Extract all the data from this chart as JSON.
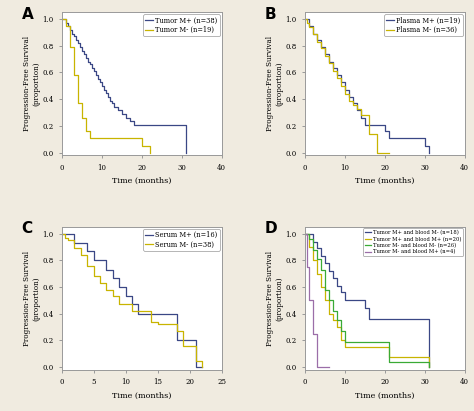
{
  "panel_A": {
    "label": "A",
    "xlabel": "Time (months)",
    "ylabel": "Progression-Free Survival\n(proportion)",
    "xlim": [
      0,
      40
    ],
    "ylim": [
      -0.02,
      1.05
    ],
    "xticks": [
      0,
      10,
      20,
      30,
      40
    ],
    "yticks": [
      0.0,
      0.2,
      0.4,
      0.6,
      0.8,
      1.0
    ],
    "series": [
      {
        "label": "Tumor M+ (n=38)",
        "color": "#3a4785",
        "x": [
          0,
          0.5,
          1,
          1.5,
          2,
          2.5,
          3,
          3.5,
          4,
          4.5,
          5,
          5.5,
          6,
          6.5,
          7,
          7.5,
          8,
          8.5,
          9,
          9.5,
          10,
          10.5,
          11,
          11.5,
          12,
          12.5,
          13,
          14,
          15,
          16,
          17,
          18,
          19,
          20,
          20.5,
          21,
          22,
          23,
          24,
          25,
          26,
          27,
          28,
          29,
          30,
          31
        ],
        "y": [
          1.0,
          1.0,
          0.97,
          0.95,
          0.92,
          0.89,
          0.87,
          0.84,
          0.82,
          0.79,
          0.76,
          0.74,
          0.71,
          0.68,
          0.66,
          0.63,
          0.61,
          0.58,
          0.55,
          0.53,
          0.5,
          0.47,
          0.45,
          0.42,
          0.39,
          0.37,
          0.34,
          0.32,
          0.29,
          0.26,
          0.24,
          0.21,
          0.21,
          0.21,
          0.21,
          0.21,
          0.21,
          0.21,
          0.21,
          0.21,
          0.21,
          0.21,
          0.21,
          0.21,
          0.21,
          0.0
        ]
      },
      {
        "label": "Tumor M- (n=19)",
        "color": "#c8b400",
        "x": [
          0,
          1,
          2,
          3,
          4,
          5,
          6,
          7,
          8,
          9,
          10,
          11,
          12,
          13,
          14,
          15,
          16,
          17,
          18,
          19,
          20,
          21,
          22
        ],
        "y": [
          1.0,
          0.95,
          0.79,
          0.58,
          0.37,
          0.26,
          0.16,
          0.11,
          0.11,
          0.11,
          0.11,
          0.11,
          0.11,
          0.11,
          0.11,
          0.11,
          0.11,
          0.11,
          0.11,
          0.11,
          0.05,
          0.05,
          0.0
        ]
      }
    ]
  },
  "panel_B": {
    "label": "B",
    "xlabel": "Time (months)",
    "ylabel": "Progression-Free Survival\n(proportion)",
    "xlim": [
      0,
      40
    ],
    "ylim": [
      -0.02,
      1.05
    ],
    "xticks": [
      0,
      10,
      20,
      30,
      40
    ],
    "yticks": [
      0.0,
      0.2,
      0.4,
      0.6,
      0.8,
      1.0
    ],
    "series": [
      {
        "label": "Plasma M+ (n=19)",
        "color": "#3a4785",
        "x": [
          0,
          0.5,
          1,
          2,
          3,
          4,
          5,
          6,
          7,
          8,
          9,
          10,
          11,
          12,
          13,
          14,
          15,
          16,
          17,
          18,
          19,
          20,
          21,
          22,
          23,
          24,
          25,
          26,
          27,
          28,
          29,
          30,
          31
        ],
        "y": [
          1.0,
          1.0,
          0.95,
          0.89,
          0.84,
          0.79,
          0.74,
          0.68,
          0.63,
          0.58,
          0.53,
          0.47,
          0.42,
          0.37,
          0.32,
          0.26,
          0.21,
          0.21,
          0.21,
          0.21,
          0.21,
          0.16,
          0.11,
          0.11,
          0.11,
          0.11,
          0.11,
          0.11,
          0.11,
          0.11,
          0.11,
          0.05,
          0.0
        ]
      },
      {
        "label": "Plasma M- (n=36)",
        "color": "#c8b400",
        "x": [
          0,
          0.5,
          1,
          2,
          3,
          4,
          5,
          6,
          7,
          8,
          9,
          10,
          11,
          12,
          13,
          14,
          15,
          16,
          17,
          18,
          19,
          20,
          21
        ],
        "y": [
          1.0,
          0.97,
          0.94,
          0.89,
          0.83,
          0.78,
          0.72,
          0.67,
          0.61,
          0.56,
          0.5,
          0.44,
          0.39,
          0.36,
          0.33,
          0.28,
          0.28,
          0.14,
          0.14,
          0.0,
          0.0,
          0.0,
          0.0
        ]
      }
    ]
  },
  "panel_C": {
    "label": "C",
    "xlabel": "Time (months)",
    "ylabel": "Progression-Free Survival\n(proportion)",
    "xlim": [
      0,
      25
    ],
    "ylim": [
      -0.02,
      1.05
    ],
    "xticks": [
      0,
      5,
      10,
      15,
      20,
      25
    ],
    "yticks": [
      0.0,
      0.2,
      0.4,
      0.6,
      0.8,
      1.0
    ],
    "series": [
      {
        "label": "Serum M+ (n=16)",
        "color": "#3a4785",
        "x": [
          0,
          1,
          2,
          3,
          4,
          5,
          6,
          7,
          8,
          9,
          10,
          11,
          12,
          13,
          14,
          15,
          16,
          17,
          18,
          19,
          20,
          21,
          22
        ],
        "y": [
          1.0,
          1.0,
          0.93,
          0.93,
          0.87,
          0.8,
          0.8,
          0.73,
          0.67,
          0.6,
          0.53,
          0.47,
          0.4,
          0.4,
          0.4,
          0.4,
          0.4,
          0.4,
          0.2,
          0.2,
          0.2,
          0.0,
          0.0
        ]
      },
      {
        "label": "Serum M- (n=38)",
        "color": "#c8b400",
        "x": [
          0,
          0.5,
          1,
          2,
          3,
          4,
          5,
          6,
          7,
          8,
          9,
          10,
          11,
          12,
          13,
          14,
          15,
          16,
          17,
          18,
          19,
          20,
          21,
          22
        ],
        "y": [
          1.0,
          0.97,
          0.95,
          0.89,
          0.84,
          0.76,
          0.68,
          0.63,
          0.58,
          0.53,
          0.47,
          0.47,
          0.42,
          0.42,
          0.42,
          0.34,
          0.32,
          0.32,
          0.32,
          0.27,
          0.16,
          0.16,
          0.05,
          0.0
        ]
      }
    ]
  },
  "panel_D": {
    "label": "D",
    "xlabel": "Time (months)",
    "ylabel": "Progression-Free Survival\n(proportion)",
    "xlim": [
      0,
      40
    ],
    "ylim": [
      -0.02,
      1.05
    ],
    "xticks": [
      0,
      10,
      20,
      30,
      40
    ],
    "yticks": [
      0.0,
      0.2,
      0.4,
      0.6,
      0.8,
      1.0
    ],
    "series": [
      {
        "label": "Tumor M+ and blood M- (n=18)",
        "color": "#3a4785",
        "x": [
          0,
          1,
          2,
          3,
          4,
          5,
          6,
          7,
          8,
          9,
          10,
          11,
          12,
          13,
          14,
          15,
          16,
          17,
          18,
          19,
          20,
          21,
          22,
          23,
          24,
          25,
          26,
          27,
          28,
          29,
          30,
          31
        ],
        "y": [
          1.0,
          1.0,
          0.94,
          0.89,
          0.83,
          0.78,
          0.72,
          0.67,
          0.61,
          0.56,
          0.5,
          0.5,
          0.5,
          0.5,
          0.5,
          0.44,
          0.36,
          0.36,
          0.36,
          0.36,
          0.36,
          0.36,
          0.36,
          0.36,
          0.36,
          0.36,
          0.36,
          0.36,
          0.36,
          0.36,
          0.36,
          0.0
        ]
      },
      {
        "label": "Tumor M+ and blood M+ (n=20)",
        "color": "#c8b400",
        "x": [
          0,
          1,
          2,
          3,
          4,
          5,
          6,
          7,
          8,
          9,
          10,
          11,
          12,
          13,
          14,
          15,
          16,
          17,
          18,
          19,
          20,
          21,
          22,
          23,
          24,
          25,
          26,
          27,
          28,
          29,
          30,
          31
        ],
        "y": [
          1.0,
          0.9,
          0.8,
          0.7,
          0.6,
          0.5,
          0.4,
          0.35,
          0.3,
          0.2,
          0.15,
          0.15,
          0.15,
          0.15,
          0.15,
          0.15,
          0.15,
          0.15,
          0.15,
          0.15,
          0.15,
          0.08,
          0.08,
          0.08,
          0.08,
          0.08,
          0.08,
          0.08,
          0.08,
          0.08,
          0.08,
          0.0
        ]
      },
      {
        "label": "Tumor M- and blood M- (n=26)",
        "color": "#3aaa35",
        "x": [
          0,
          1,
          2,
          3,
          4,
          5,
          6,
          7,
          8,
          9,
          10,
          11,
          12,
          13,
          14,
          15,
          16,
          17,
          18,
          19,
          20,
          21,
          22,
          23,
          24,
          25,
          26,
          27,
          28,
          29,
          30,
          31
        ],
        "y": [
          1.0,
          0.96,
          0.88,
          0.81,
          0.73,
          0.58,
          0.5,
          0.42,
          0.35,
          0.27,
          0.19,
          0.19,
          0.19,
          0.19,
          0.19,
          0.19,
          0.19,
          0.19,
          0.19,
          0.19,
          0.19,
          0.04,
          0.04,
          0.04,
          0.04,
          0.04,
          0.04,
          0.04,
          0.04,
          0.04,
          0.04,
          0.0
        ]
      },
      {
        "label": "Tumor M- and blood M+ (n=4)",
        "color": "#9b6ea8",
        "x": [
          0,
          0.5,
          1,
          2,
          3,
          4,
          5,
          6
        ],
        "y": [
          1.0,
          0.75,
          0.5,
          0.25,
          0.0,
          0.0,
          0.0,
          0.0
        ]
      }
    ]
  },
  "bg_color": "#f0ebe0",
  "axes_bg": "#ffffff",
  "font_family": "DejaVu Serif"
}
